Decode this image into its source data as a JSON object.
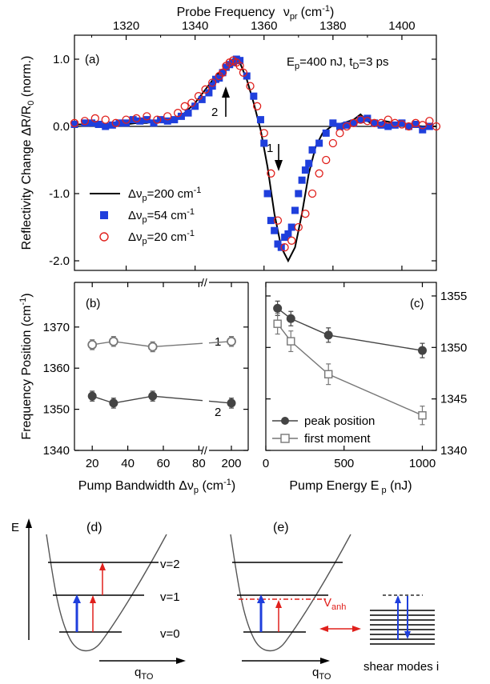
{
  "colors": {
    "blue": "#1f3fdc",
    "red": "#e0201c",
    "dark": "#444444",
    "mid": "#777777"
  },
  "chart_data": [
    {
      "type": "line",
      "panel": "(a)",
      "annotation": "E_p=400 nJ, t_D=3 ps",
      "xlabel": "Probe Frequency",
      "xlabel_symbol": "ν",
      "xlabel_sub": "pr",
      "xlabel_unit": "(cm",
      "xlabel_unit_sup": "-1",
      "xlabel_unit_close": ")",
      "ylabel": "Reflectivity Change  ΔR/R",
      "ylabel_sub": "0",
      "ylabel_unit": " (norm.)",
      "xlim": [
        1305,
        1410
      ],
      "ylim": [
        -2.15,
        1.2
      ],
      "xticks": [
        "1320",
        "1340",
        "1360",
        "1380",
        "1400"
      ],
      "xtick_values": [
        1320,
        1340,
        1360,
        1380,
        1400
      ],
      "yticks": [
        "1.0",
        "0.0",
        "-1.0",
        "-2.0"
      ],
      "ytick_values": [
        1.0,
        0.0,
        -1.0,
        -2.0
      ],
      "arrow1_label": "1",
      "arrow2_label": "2",
      "series": [
        {
          "name": "Δν_p=200 cm⁻¹",
          "name_prefix": "Δν",
          "name_sub": "p",
          "name_mid": "=200 cm",
          "name_sup": "-1",
          "style": "line",
          "x": [
            1305,
            1310,
            1315,
            1318,
            1320,
            1323,
            1326,
            1330,
            1334,
            1337,
            1340,
            1343,
            1346,
            1349,
            1351,
            1353,
            1355,
            1357,
            1359,
            1361,
            1363,
            1365,
            1367,
            1369,
            1371,
            1373,
            1375,
            1377,
            1380,
            1383,
            1386,
            1388,
            1390,
            1392,
            1395,
            1398,
            1402,
            1406,
            1410
          ],
          "y": [
            0.03,
            0.03,
            0.03,
            0.03,
            0.03,
            0.05,
            0.05,
            0.1,
            0.12,
            0.2,
            0.35,
            0.55,
            0.75,
            0.88,
            1.0,
            0.95,
            0.7,
            0.35,
            -0.05,
            -0.6,
            -1.3,
            -1.8,
            -2.0,
            -1.8,
            -1.3,
            -0.7,
            -0.3,
            -0.1,
            0.02,
            0.05,
            0.1,
            0.18,
            0.08,
            0.02,
            0.08,
            0.05,
            0.02,
            0.0,
            0.0
          ]
        },
        {
          "name": "Δν_p=54 cm⁻¹",
          "name_prefix": "Δν",
          "name_sub": "p",
          "name_mid": "=54 cm",
          "name_sup": "-1",
          "style": "square",
          "x": [
            1305,
            1308,
            1310,
            1312,
            1314,
            1316,
            1318,
            1320,
            1322,
            1324,
            1326,
            1328,
            1330,
            1332,
            1334,
            1336,
            1338,
            1340,
            1342,
            1344,
            1345,
            1346,
            1347,
            1348,
            1349,
            1350,
            1351,
            1352,
            1353,
            1355,
            1357,
            1359,
            1360,
            1361,
            1362,
            1363,
            1364,
            1365,
            1366,
            1367,
            1368,
            1369,
            1370,
            1371,
            1372,
            1373,
            1374,
            1376,
            1378,
            1380,
            1382,
            1384,
            1386,
            1388,
            1390,
            1392,
            1394,
            1396,
            1398,
            1400,
            1402,
            1404,
            1406,
            1408
          ],
          "y": [
            0.03,
            0.05,
            0.05,
            0.03,
            0.0,
            0.02,
            0.05,
            0.05,
            0.1,
            0.08,
            0.1,
            0.05,
            0.1,
            0.08,
            0.1,
            0.15,
            0.2,
            0.3,
            0.4,
            0.5,
            0.6,
            0.7,
            0.72,
            0.8,
            0.88,
            0.92,
            0.95,
            1.0,
            0.98,
            0.75,
            0.45,
            0.1,
            -0.25,
            -1.0,
            -1.4,
            -1.55,
            -1.75,
            -1.8,
            -1.65,
            -1.6,
            -1.5,
            -1.25,
            -1.0,
            -0.8,
            -0.65,
            -0.55,
            -0.35,
            -0.25,
            -0.1,
            0.05,
            0.0,
            0.02,
            0.05,
            0.1,
            0.12,
            0.05,
            0.02,
            0.0,
            0.02,
            0.05,
            0.0,
            0.03,
            -0.05,
            0.0
          ]
        },
        {
          "name": "Δν_p=20 cm⁻¹",
          "name_prefix": "Δν",
          "name_sub": "p",
          "name_mid": "=20 cm",
          "name_sup": "-1",
          "style": "circle",
          "x": [
            1305,
            1308,
            1311,
            1314,
            1317,
            1320,
            1323,
            1326,
            1329,
            1332,
            1335,
            1337,
            1339,
            1341,
            1343,
            1345,
            1347,
            1348,
            1349,
            1350,
            1351,
            1352,
            1353,
            1354,
            1356,
            1358,
            1360,
            1362,
            1364,
            1366,
            1368,
            1370,
            1372,
            1374,
            1376,
            1378,
            1380,
            1382,
            1384,
            1386,
            1388,
            1390,
            1392,
            1394,
            1396,
            1398,
            1400,
            1402,
            1404,
            1406,
            1408,
            1410
          ],
          "y": [
            0.05,
            0.08,
            0.12,
            0.1,
            0.05,
            0.1,
            0.12,
            0.15,
            0.1,
            0.15,
            0.2,
            0.3,
            0.35,
            0.45,
            0.55,
            0.65,
            0.75,
            0.8,
            0.9,
            0.95,
            0.98,
            0.95,
            0.9,
            0.8,
            0.6,
            0.3,
            -0.1,
            -0.7,
            -1.4,
            -1.8,
            -1.7,
            -1.5,
            -1.3,
            -1.0,
            -0.7,
            -0.5,
            -0.25,
            -0.1,
            0.0,
            0.05,
            0.1,
            0.08,
            0.05,
            0.05,
            0.1,
            0.05,
            0.03,
            0.0,
            0.05,
            0.02,
            0.08,
            0.0
          ]
        }
      ]
    },
    {
      "type": "line",
      "panel": "(b)",
      "xlabel": "Pump Bandwidth  Δν",
      "xlabel_sub": "p",
      "xlabel_unit": " (cm",
      "xlabel_unit_sup": "-1",
      "xlabel_unit_close": ")",
      "ylabel": "Frequency Position (cm",
      "ylabel_sup": "-1",
      "ylabel_close": ")",
      "ylim": [
        1340,
        1375
      ],
      "yticks": [
        "1370",
        "1360",
        "1350",
        "1340"
      ],
      "ytick_values": [
        1370,
        1360,
        1350,
        1340
      ],
      "xticks": [
        "20",
        "40",
        "60",
        "80",
        "200"
      ],
      "xtick_values": [
        20,
        40,
        60,
        80,
        200
      ],
      "axis_break": "broken between 90 and 190",
      "series": [
        {
          "name": "1",
          "style": "open-circle",
          "x": [
            20,
            32,
            54,
            200
          ],
          "y": [
            1365.7,
            1366.5,
            1365.2,
            1366.5
          ],
          "err": [
            1.2,
            1.2,
            1.2,
            1.2
          ]
        },
        {
          "name": "2",
          "style": "filled-circle",
          "x": [
            20,
            32,
            54,
            200
          ],
          "y": [
            1353.2,
            1351.5,
            1353.2,
            1351.5
          ],
          "err": [
            1.2,
            1.2,
            1.2,
            1.2
          ]
        }
      ]
    },
    {
      "type": "line",
      "panel": "(c)",
      "xlabel": "Pump Energy E",
      "xlabel_sub": " p",
      "xlabel_unit": " (nJ)",
      "xlim": [
        0,
        1100
      ],
      "xticks": [
        "0",
        "500",
        "1000"
      ],
      "xtick_values": [
        0,
        500,
        1000
      ],
      "ylim": [
        1340,
        1356
      ],
      "yticks": [
        "1355",
        "1350",
        "1345",
        "1340"
      ],
      "ytick_values": [
        1355,
        1350,
        1345,
        1340
      ],
      "series": [
        {
          "name": "peak position",
          "style": "filled-circle",
          "x": [
            75,
            160,
            400,
            1000
          ],
          "y": [
            1353.8,
            1352.8,
            1351.2,
            1349.7
          ],
          "err": [
            0.7,
            0.7,
            0.7,
            0.7
          ]
        },
        {
          "name": "first moment",
          "style": "open-square",
          "x": [
            75,
            160,
            400,
            1000
          ],
          "y": [
            1352.3,
            1350.6,
            1347.4,
            1343.4
          ],
          "err": [
            1.0,
            1.0,
            1.0,
            0.9
          ]
        }
      ]
    }
  ],
  "diagram_d": {
    "panel": "(d)",
    "ylabel": "E",
    "xlabel": "q",
    "xlabel_sub": "TO",
    "levels": [
      "v=2",
      "v=1",
      "v=0"
    ]
  },
  "diagram_e": {
    "panel": "(e)",
    "xlabel": "q",
    "xlabel_sub": "TO",
    "coupling": "V",
    "coupling_sub": "anh",
    "bath_label": "shear modes i"
  }
}
